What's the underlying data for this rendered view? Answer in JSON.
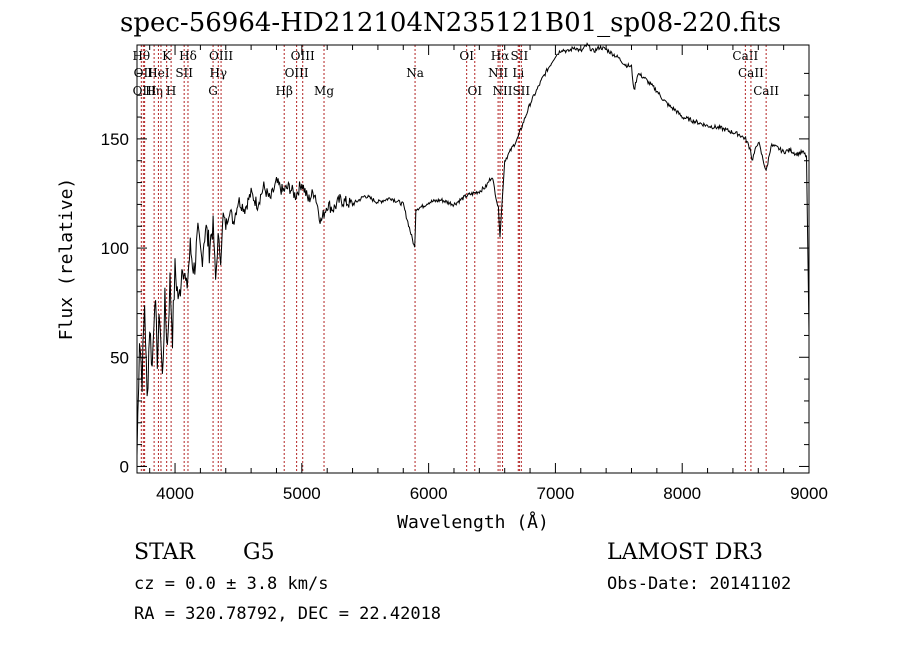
{
  "chart_data": {
    "type": "line",
    "title": "spec-56964-HD212104N235121B01_sp08-220.fits",
    "xlabel": "Wavelength (Å)",
    "ylabel": "Flux (relative)",
    "xlim": [
      3700,
      9000
    ],
    "ylim": [
      -3,
      193
    ],
    "xticks": [
      4000,
      5000,
      6000,
      7000,
      8000,
      9000
    ],
    "yticks": [
      0,
      50,
      100,
      150
    ],
    "grid": false,
    "series": [
      {
        "name": "flux",
        "x": [
          3700,
          3720,
          3740,
          3760,
          3780,
          3800,
          3820,
          3840,
          3860,
          3880,
          3900,
          3920,
          3940,
          3960,
          3980,
          4000,
          4030,
          4060,
          4090,
          4120,
          4150,
          4180,
          4210,
          4240,
          4270,
          4300,
          4320,
          4340,
          4360,
          4380,
          4400,
          4430,
          4460,
          4500,
          4550,
          4600,
          4650,
          4700,
          4750,
          4800,
          4850,
          4900,
          4950,
          5000,
          5050,
          5100,
          5150,
          5200,
          5250,
          5300,
          5400,
          5500,
          5600,
          5700,
          5800,
          5890,
          5900,
          5950,
          6000,
          6100,
          6200,
          6300,
          6400,
          6450,
          6500,
          6550,
          6563,
          6600,
          6650,
          6700,
          6750,
          6800,
          6850,
          6900,
          6950,
          7000,
          7050,
          7100,
          7150,
          7200,
          7250,
          7300,
          7350,
          7400,
          7450,
          7500,
          7550,
          7600,
          7620,
          7650,
          7700,
          7750,
          7800,
          7850,
          7900,
          7950,
          8000,
          8100,
          8200,
          8300,
          8400,
          8450,
          8500,
          8540,
          8550,
          8600,
          8662,
          8700,
          8750,
          8800,
          8850,
          8900,
          8950,
          8980,
          9000
        ],
        "values": [
          5,
          60,
          40,
          75,
          30,
          65,
          45,
          80,
          50,
          70,
          40,
          75,
          55,
          85,
          60,
          90,
          75,
          95,
          80,
          100,
          90,
          105,
          95,
          110,
          100,
          112,
          85,
          105,
          95,
          115,
          110,
          118,
          112,
          122,
          118,
          125,
          120,
          128,
          122,
          130,
          126,
          128,
          124,
          130,
          122,
          126,
          112,
          120,
          118,
          122,
          120,
          124,
          121,
          123,
          120,
          100,
          118,
          119,
          121,
          122,
          120,
          124,
          126,
          128,
          133,
          118,
          106,
          140,
          145,
          150,
          158,
          166,
          172,
          178,
          183,
          188,
          191,
          190,
          192,
          190,
          193,
          190,
          192,
          191,
          189,
          187,
          184,
          183,
          172,
          180,
          178,
          175,
          172,
          168,
          165,
          163,
          160,
          158,
          156,
          155,
          153,
          152,
          150,
          145,
          140,
          149,
          135,
          147,
          146,
          144,
          145,
          143,
          144,
          142,
          60
        ]
      }
    ],
    "lines": [
      {
        "x": 3734,
        "label": "Hθ",
        "row": 0
      },
      {
        "x": 3750,
        "label": "OII",
        "row": 1
      },
      {
        "x": 3760,
        "label": "OIII",
        "row": 2
      },
      {
        "x": 3835,
        "label": "Hη",
        "row": 2
      },
      {
        "x": 3869,
        "label": "HeI",
        "row": 1
      },
      {
        "x": 3889,
        "label": "",
        "row": -1
      },
      {
        "x": 3934,
        "label": "K",
        "row": 0
      },
      {
        "x": 3969,
        "label": "H",
        "row": 2
      },
      {
        "x": 4072,
        "label": "SII",
        "row": 1
      },
      {
        "x": 4102,
        "label": "Hδ",
        "row": 0
      },
      {
        "x": 4300,
        "label": "G",
        "row": 2
      },
      {
        "x": 4341,
        "label": "Hγ",
        "row": 1
      },
      {
        "x": 4363,
        "label": "OIII",
        "row": 0
      },
      {
        "x": 4861,
        "label": "Hβ",
        "row": 2
      },
      {
        "x": 4959,
        "label": "OIII",
        "row": 1
      },
      {
        "x": 5007,
        "label": "OIII",
        "row": 0
      },
      {
        "x": 5175,
        "label": "Mg",
        "row": 2
      },
      {
        "x": 5893,
        "label": "Na",
        "row": 1
      },
      {
        "x": 6300,
        "label": "OI",
        "row": 0
      },
      {
        "x": 6364,
        "label": "OI",
        "row": 2
      },
      {
        "x": 6548,
        "label": "NII",
        "row": 1
      },
      {
        "x": 6563,
        "label": "Hα",
        "row": 0
      },
      {
        "x": 6583,
        "label": "NII",
        "row": 2
      },
      {
        "x": 6707,
        "label": "Li",
        "row": 1
      },
      {
        "x": 6716,
        "label": "SII",
        "row": 0
      },
      {
        "x": 6731,
        "label": "SII",
        "row": 2
      },
      {
        "x": 8498,
        "label": "CaII",
        "row": 0
      },
      {
        "x": 8542,
        "label": "CaII",
        "row": 1
      },
      {
        "x": 8662,
        "label": "CaII",
        "row": 2
      }
    ]
  },
  "info": {
    "class": "STAR",
    "subclass": "G5",
    "survey": "LAMOST DR3",
    "cz": "cz = 0.0 ± 3.8 km/s",
    "obs_date": "Obs-Date: 20141102",
    "coords": "RA = 320.78792, DEC =  22.42018"
  },
  "colors": {
    "line_marker": "#b22222",
    "spectrum": "#000000"
  }
}
